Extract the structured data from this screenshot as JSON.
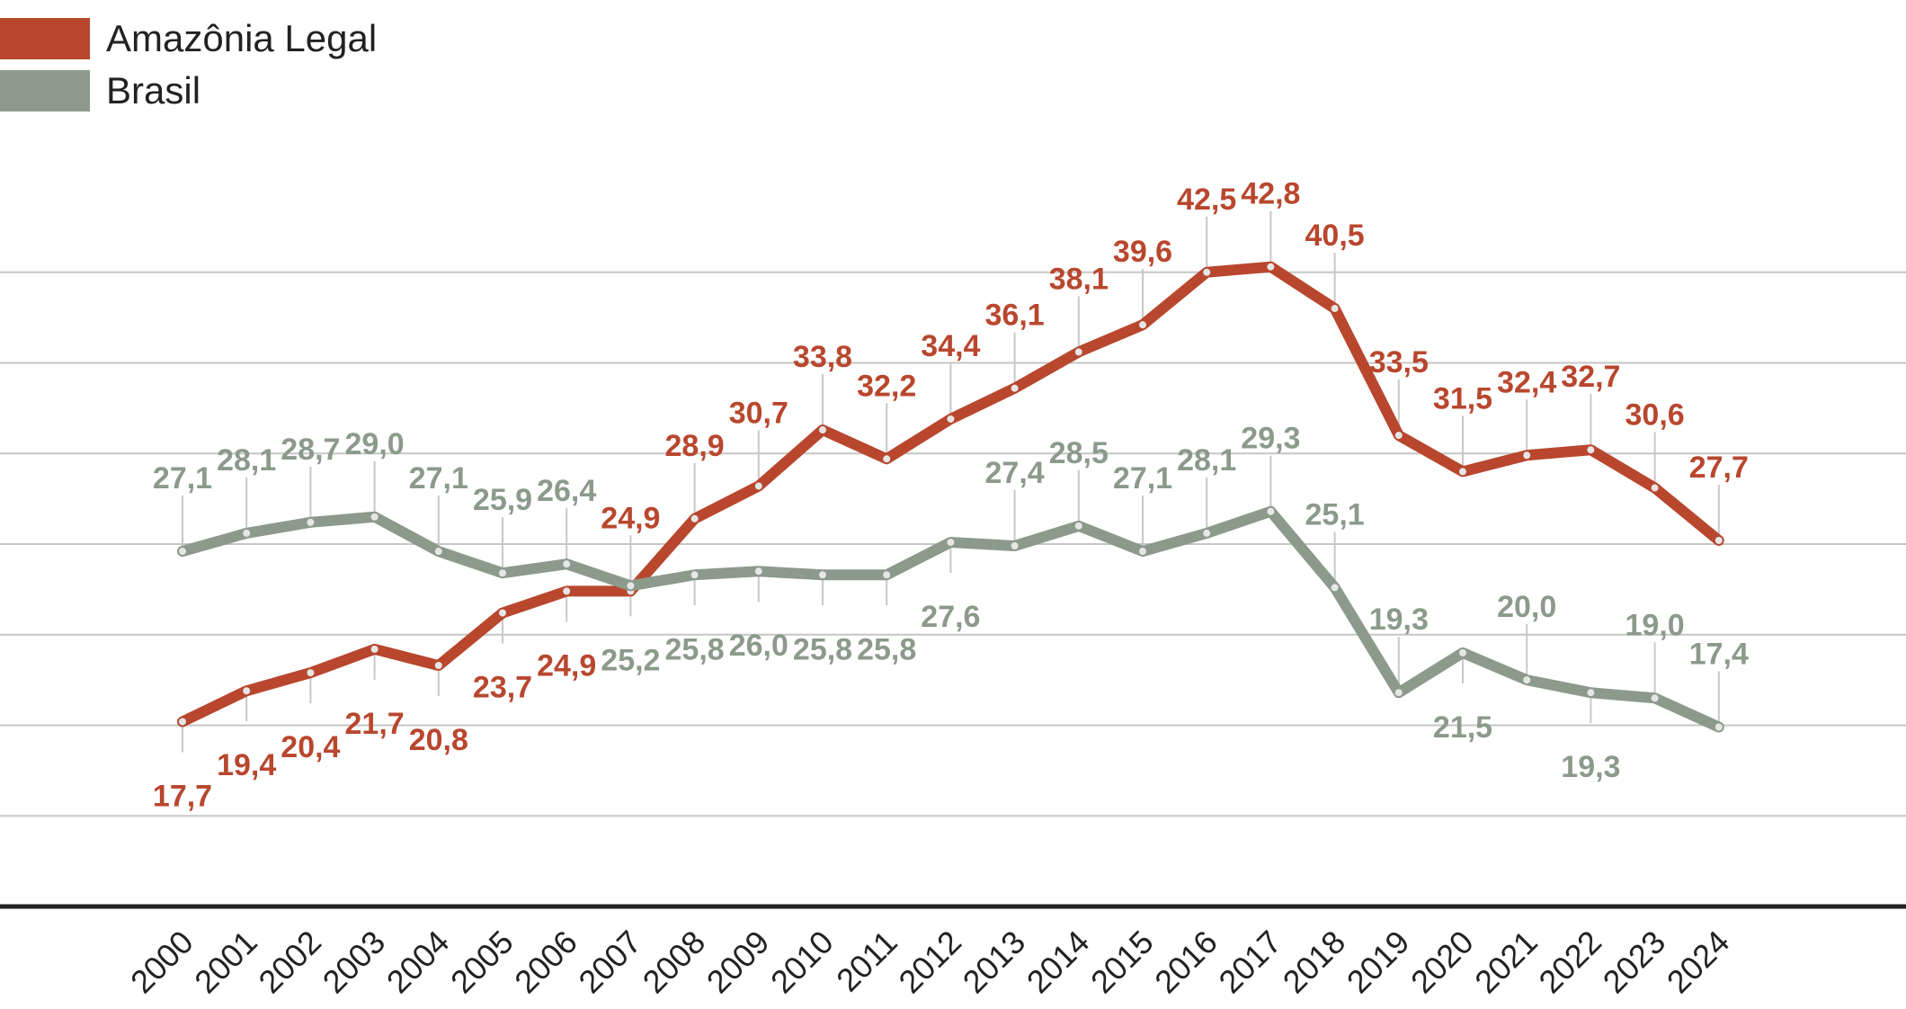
{
  "chart_data": {
    "type": "line",
    "x": [
      "2000",
      "2001",
      "2002",
      "2003",
      "2004",
      "2005",
      "2006",
      "2007",
      "2008",
      "2009",
      "2010",
      "2011",
      "2012",
      "2013",
      "2014",
      "2015",
      "2016",
      "2017",
      "2018",
      "2019",
      "2020",
      "2021",
      "2022",
      "2023",
      "2024"
    ],
    "series": [
      {
        "name": "Amazônia Legal",
        "color": "#b8472e",
        "values": [
          17.7,
          19.4,
          20.4,
          21.7,
          20.8,
          23.7,
          24.9,
          24.9,
          28.9,
          30.7,
          33.8,
          32.2,
          34.4,
          36.1,
          38.1,
          39.6,
          42.5,
          42.8,
          40.5,
          33.5,
          31.5,
          32.4,
          32.7,
          30.6,
          27.7
        ],
        "labels": [
          "17,7",
          "19,4",
          "20,4",
          "21,7",
          "20,8",
          "23,7",
          "24,9",
          "24,9",
          "28,9",
          "30,7",
          "33,8",
          "32,2",
          "34,4",
          "36,1",
          "38,1",
          "39,6",
          "42,5",
          "42,8",
          "40,5",
          "33,5",
          "31,5",
          "32,4",
          "32,7",
          "30,6",
          "27,7"
        ],
        "label_side": [
          "below",
          "below",
          "below",
          "below",
          "below",
          "below",
          "below",
          "above",
          "above",
          "above",
          "above",
          "above",
          "above",
          "above",
          "above",
          "above",
          "above",
          "above",
          "above",
          "above",
          "above",
          "above",
          "above",
          "above",
          "above"
        ]
      },
      {
        "name": "Brasil",
        "color": "#8c9a8c",
        "values": [
          27.1,
          28.1,
          28.7,
          29.0,
          27.1,
          25.9,
          26.4,
          25.2,
          25.8,
          26.0,
          25.8,
          25.8,
          27.6,
          27.4,
          28.5,
          27.1,
          28.1,
          29.3,
          25.1,
          19.3,
          21.5,
          20.0,
          19.3,
          19.0,
          17.4
        ],
        "labels": [
          "27,1",
          "28,1",
          "28,7",
          "29,0",
          "27,1",
          "25,9",
          "26,4",
          "25,2",
          "25,8",
          "26,0",
          "25,8",
          "25,8",
          "27,6",
          "27,4",
          "28,5",
          "27,1",
          "28,1",
          "29,3",
          "25,1",
          "19,3",
          "21,5",
          "20,0",
          "19,3",
          "19,0",
          "17,4"
        ],
        "label_side": [
          "above",
          "above",
          "above",
          "above",
          "above",
          "above",
          "above",
          "below",
          "below",
          "below",
          "below",
          "below",
          "below",
          "above",
          "above",
          "above",
          "above",
          "above",
          "above",
          "above",
          "below",
          "above",
          "below",
          "above",
          "above"
        ]
      }
    ],
    "ylim": [
      7.5,
      47.5
    ],
    "gridlines": [
      12.5,
      17.5,
      22.5,
      27.5,
      32.5,
      37.5,
      42.5
    ],
    "grid": true,
    "legend_position": "top-left",
    "title": "",
    "xlabel": "",
    "ylabel": ""
  }
}
